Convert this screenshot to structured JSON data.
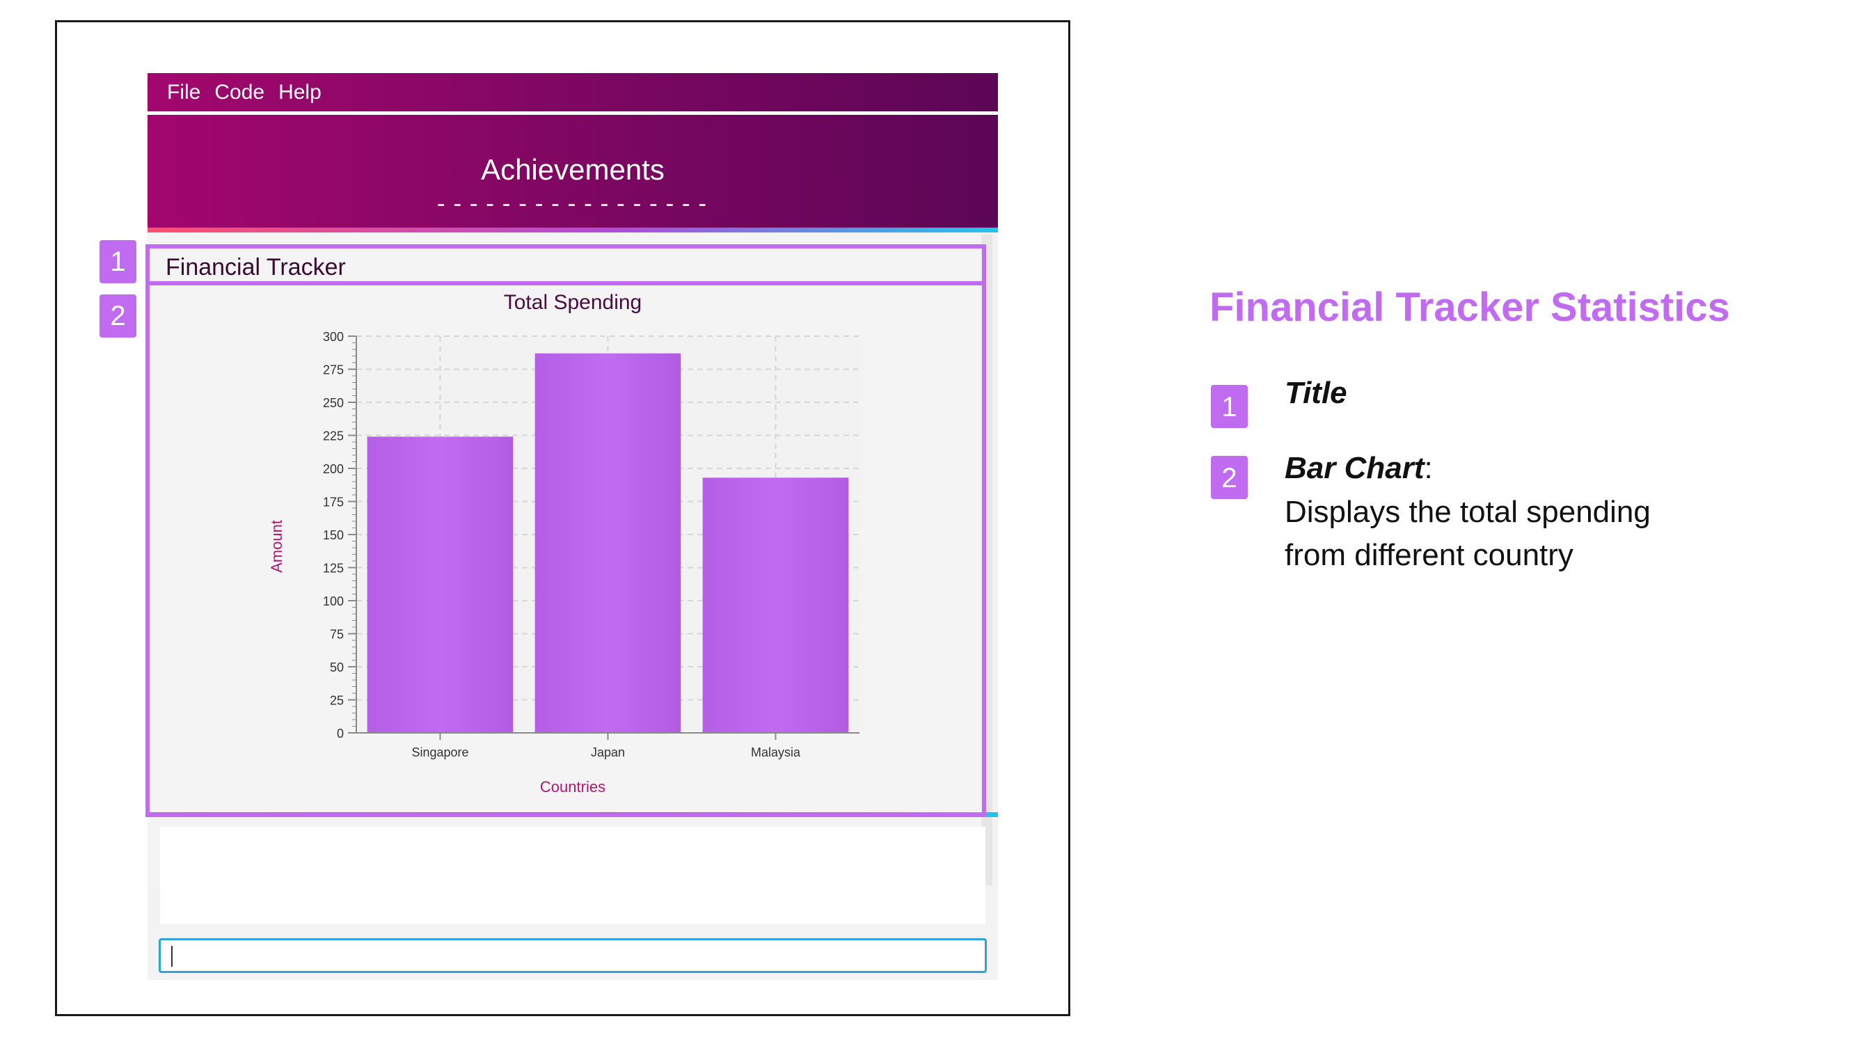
{
  "app": {
    "menu": [
      "File",
      "Code",
      "Help"
    ],
    "banner_title": "Achievements",
    "banner_dashes": "-----------------",
    "section_title": "Financial Tracker",
    "command_value": ""
  },
  "chart_data": {
    "type": "bar",
    "title": "Total Spending",
    "xlabel": "Countries",
    "ylabel": "Amount",
    "categories": [
      "Singapore",
      "Japan",
      "Malaysia"
    ],
    "values": [
      224,
      287,
      193
    ],
    "ylim": [
      0,
      300
    ],
    "yticks": [
      0,
      25,
      50,
      75,
      100,
      125,
      150,
      175,
      200,
      225,
      250,
      275,
      300
    ],
    "grid": true,
    "bar_color": "#c06bf0"
  },
  "annotations": {
    "badges": [
      "1",
      "2"
    ]
  },
  "legend": {
    "title": "Financial Tracker Statistics",
    "items": [
      {
        "num": "1",
        "label": "Title",
        "desc": ""
      },
      {
        "num": "2",
        "label": "Bar Chart",
        "suffix": ":",
        "desc": "Displays the total spending from different country"
      }
    ]
  },
  "colors": {
    "accent": "#c06bf0",
    "menubar_start": "#a3076e",
    "menubar_end": "#5c0656",
    "command_border": "#2fa3d8"
  }
}
